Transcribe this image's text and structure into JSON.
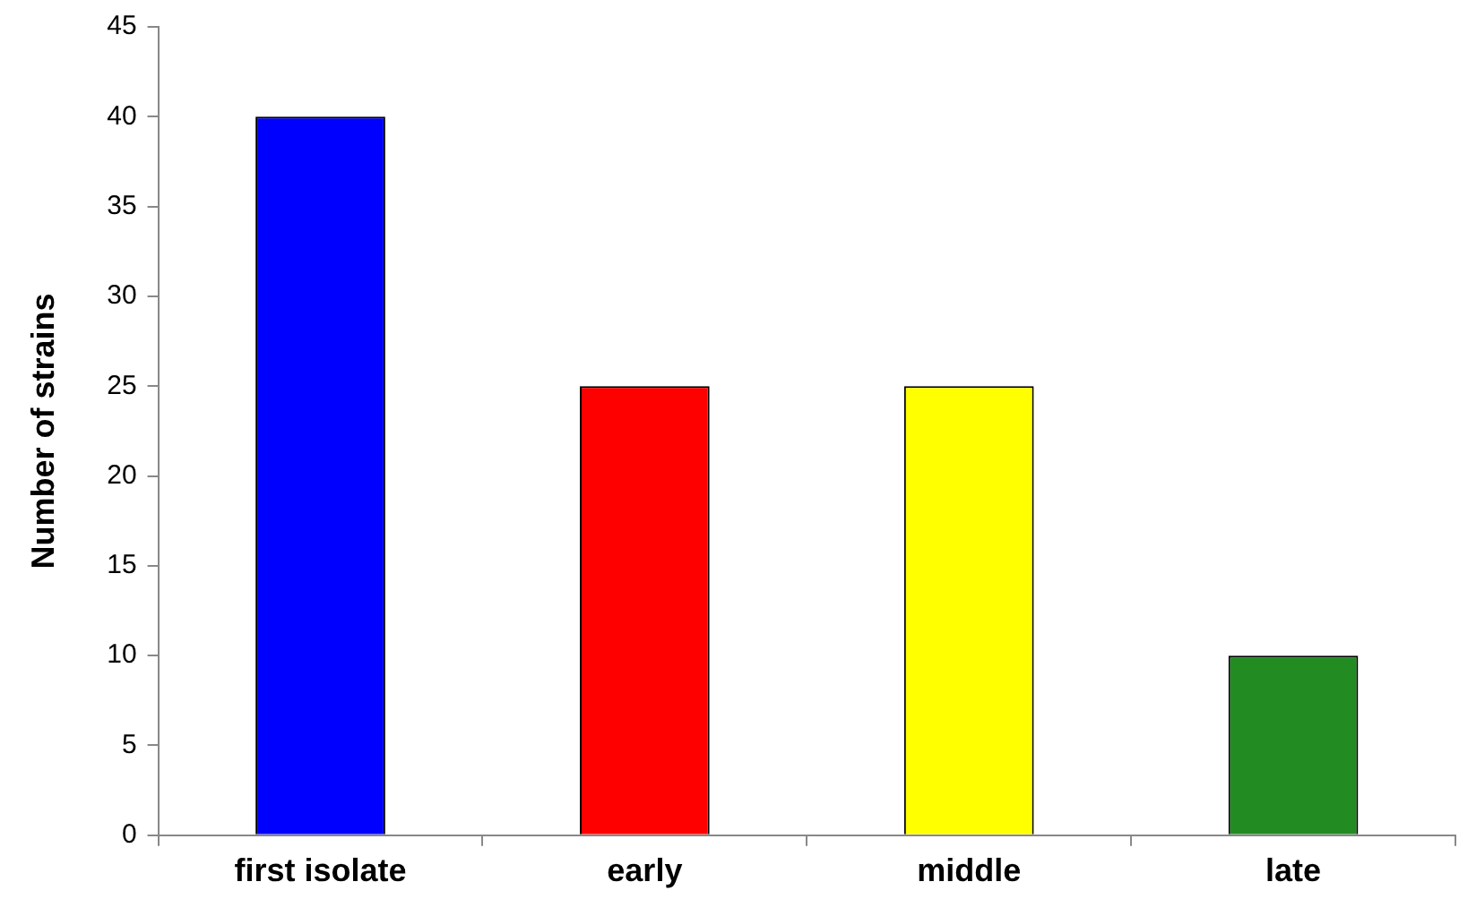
{
  "chart_data": {
    "type": "bar",
    "ylabel": "Number of strains",
    "categories": [
      "first isolate",
      "early",
      "middle",
      "late"
    ],
    "values": [
      40,
      25,
      25,
      10
    ],
    "colors": [
      "#0000ff",
      "#ff0000",
      "#ffff00",
      "#228b22"
    ],
    "ylim": [
      0,
      45
    ],
    "yticks": [
      0,
      5,
      10,
      15,
      20,
      25,
      30,
      35,
      40,
      45
    ],
    "grid": false,
    "legend": false
  }
}
